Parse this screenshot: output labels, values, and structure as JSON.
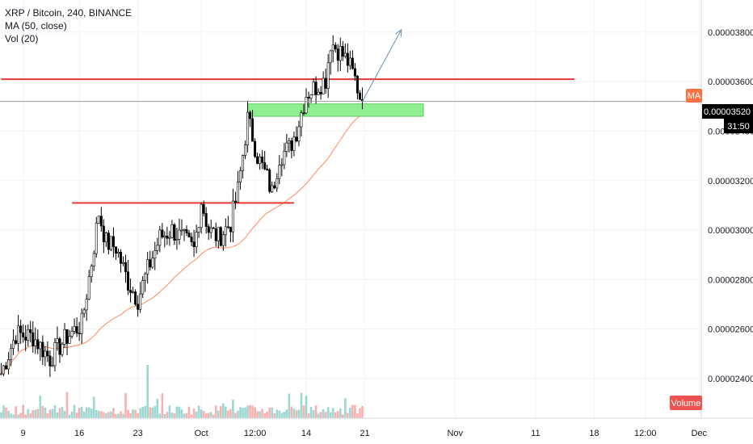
{
  "legend": {
    "symbol_line": "XRP / Bitcoin, 240, BINANCE",
    "ma_line": "MA (50, close)",
    "vol_line": "Vol (20)"
  },
  "badges": {
    "ma": "MA",
    "price": "0.00003520",
    "countdown": "31:50",
    "volume": "Volume"
  },
  "colors": {
    "up": "#26a69a",
    "down": "#ef5350",
    "ma": "#ff8a5c",
    "resistance": "#e53935",
    "support_zone": "#8ef08e",
    "arrow": "#6b8fb5",
    "ma_badge": "#ff7043",
    "price_badge": "#000000",
    "volume_badge": "#ef5350"
  },
  "chart_data": {
    "type": "candlestick",
    "y_axis": {
      "labels": [
        "0.00002400",
        "0.00002600",
        "0.00002800",
        "0.00003000",
        "0.00003200",
        "0.00003400",
        "0.00003600",
        "0.00003800"
      ],
      "min": 2.24e-05,
      "max": 3.93e-05
    },
    "x_axis": {
      "labels": [
        "9",
        "16",
        "23",
        "Oct",
        "12:00",
        "14",
        "21",
        "Nov",
        "11",
        "18",
        "12:00",
        "Dec"
      ]
    },
    "last_price": 3.52e-05,
    "close_anchors": [
      [
        0,
        2.42e-05
      ],
      [
        6,
        2.58e-05
      ],
      [
        13,
        2.57e-05
      ],
      [
        20,
        2.48e-05
      ],
      [
        27,
        2.57e-05
      ],
      [
        33,
        2.62e-05
      ],
      [
        37,
        2.87e-05
      ],
      [
        40,
        3.07e-05
      ],
      [
        43,
        2.95e-05
      ],
      [
        47,
        2.93e-05
      ],
      [
        52,
        2.79e-05
      ],
      [
        56,
        2.72e-05
      ],
      [
        60,
        2.84e-05
      ],
      [
        65,
        2.97e-05
      ],
      [
        70,
        3e-05
      ],
      [
        75,
        2.96e-05
      ],
      [
        79,
        2.92e-05
      ],
      [
        82,
        3.12e-05
      ],
      [
        85,
        3e-05
      ],
      [
        89,
        2.97e-05
      ],
      [
        94,
        3.03e-05
      ],
      [
        97,
        3.16e-05
      ],
      [
        101,
        3.45e-05
      ],
      [
        103,
        3.38e-05
      ],
      [
        105,
        3.3e-05
      ],
      [
        109,
        3.21e-05
      ],
      [
        111,
        3.15e-05
      ],
      [
        114,
        3.3e-05
      ],
      [
        118,
        3.33e-05
      ],
      [
        121,
        3.4e-05
      ],
      [
        125,
        3.55e-05
      ],
      [
        129,
        3.58e-05
      ],
      [
        133,
        3.61e-05
      ],
      [
        135,
        3.76e-05
      ],
      [
        139,
        3.72e-05
      ],
      [
        142,
        3.68e-05
      ],
      [
        145,
        3.61e-05
      ],
      [
        147,
        3.54e-05
      ],
      [
        148,
        3.52e-05
      ]
    ],
    "resistance_lines": [
      {
        "price": 3.61e-05,
        "x_start_bar": 0,
        "x_end_bar": 235
      },
      {
        "price": 3.11e-05,
        "x_start_bar": 29,
        "x_end_bar": 120
      }
    ],
    "support_zone": {
      "price_top": 3.51e-05,
      "price_bottom": 3.46e-05,
      "x_start_bar": 101,
      "x_end_bar": 173
    },
    "projection_arrow": {
      "from_bar": 148,
      "from_price": 3.52e-05,
      "to_bar": 164,
      "to_price": 3.81e-05
    },
    "volume_note": "Vol (20) histogram at bottom"
  }
}
